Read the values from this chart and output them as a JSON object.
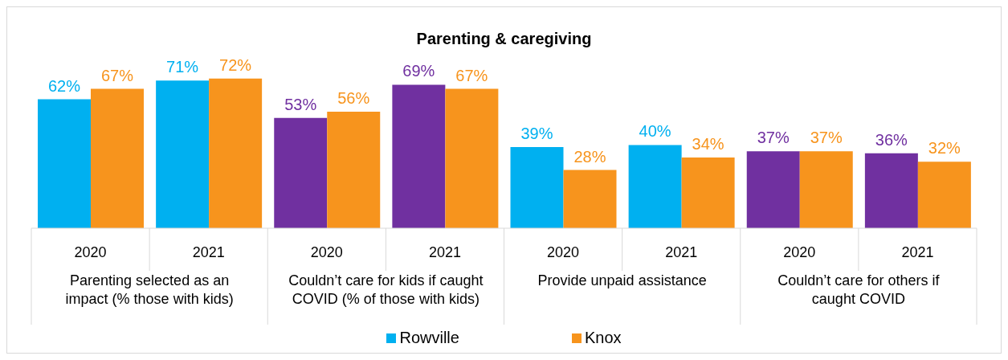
{
  "chart_data": {
    "type": "bar",
    "title": "Parenting & caregiving",
    "categories": [
      "2020",
      "2021",
      "2020",
      "2021",
      "2020",
      "2021",
      "2020",
      "2021"
    ],
    "series": [
      {
        "name": "Rowville",
        "color": "#00b0f0",
        "colors": [
          "#00b0f0",
          "#00b0f0",
          "#7030a0",
          "#7030a0",
          "#00b0f0",
          "#00b0f0",
          "#7030a0",
          "#7030a0"
        ],
        "values": [
          62,
          71,
          53,
          69,
          39,
          40,
          37,
          36
        ],
        "value_labels": [
          "62%",
          "71%",
          "53%",
          "69%",
          "39%",
          "40%",
          "37%",
          "36%"
        ]
      },
      {
        "name": "Knox",
        "color": "#f7941d",
        "values": [
          67,
          72,
          56,
          67,
          28,
          34,
          37,
          32
        ],
        "value_labels": [
          "67%",
          "72%",
          "56%",
          "67%",
          "28%",
          "34%",
          "37%",
          "32%"
        ]
      }
    ],
    "annotations": [
      "Parenting selected as an impact (% those with kids)",
      "Couldn’t care for kids if caught COVID (% of those with kids)",
      "Provide unpaid assistance",
      "Couldn’t care for others if caught COVID"
    ],
    "legend": "bottom"
  }
}
